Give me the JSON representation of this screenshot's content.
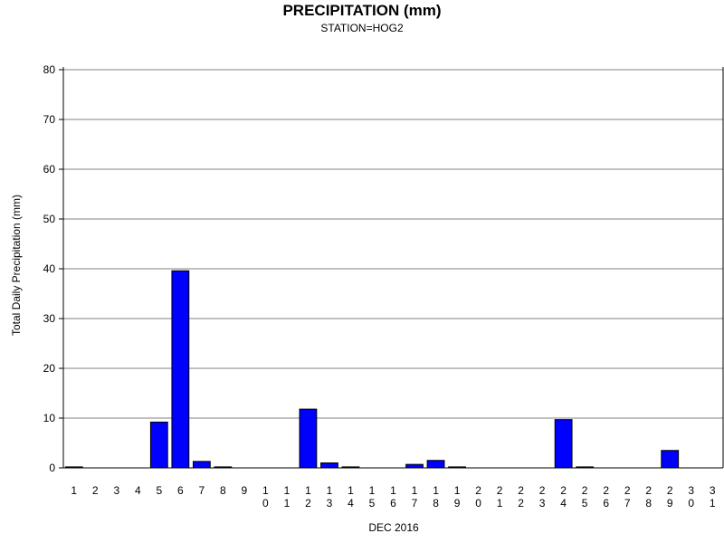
{
  "chart_data": {
    "type": "bar",
    "title": "PRECIPITATION (mm)",
    "subtitle": "STATION=HOG2",
    "xlabel": "DEC 2016",
    "ylabel": "Total Daily Precipitation (mm)",
    "ylim": [
      0,
      80
    ],
    "yticks": [
      0,
      10,
      20,
      30,
      40,
      50,
      60,
      70,
      80
    ],
    "grid": true,
    "categories": [
      "1",
      "2",
      "3",
      "4",
      "5",
      "6",
      "7",
      "8",
      "9",
      "10",
      "11",
      "12",
      "13",
      "14",
      "15",
      "16",
      "17",
      "18",
      "19",
      "20",
      "21",
      "22",
      "23",
      "24",
      "25",
      "26",
      "27",
      "28",
      "29",
      "30",
      "31"
    ],
    "values": [
      0.2,
      0,
      0,
      0,
      9.2,
      39.6,
      1.3,
      0.2,
      0,
      0,
      0,
      11.8,
      1.0,
      0.2,
      0,
      0,
      0.7,
      1.5,
      0.2,
      0,
      0,
      0,
      0,
      9.7,
      0.2,
      0,
      0,
      0,
      3.5,
      0,
      0
    ],
    "bar_color": "#0000ff"
  }
}
